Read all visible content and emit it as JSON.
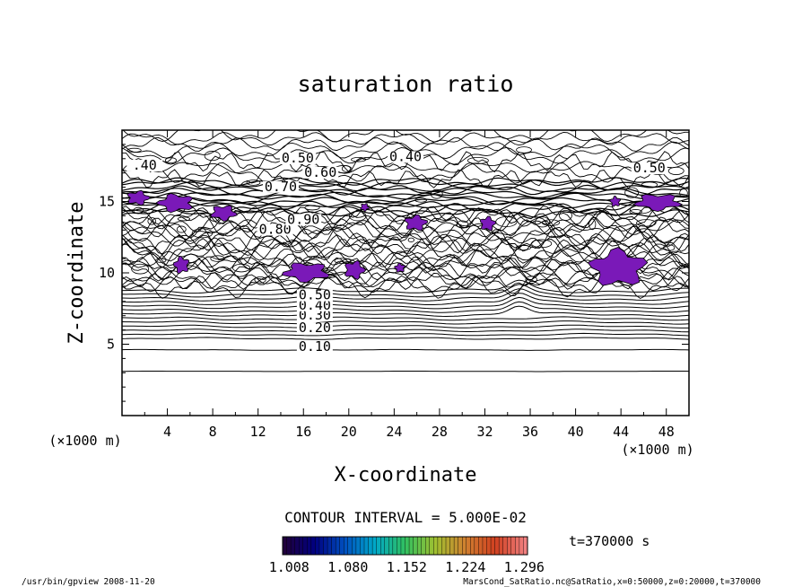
{
  "chart_data": {
    "type": "contour",
    "title": "saturation ratio",
    "xlabel": "X-coordinate",
    "ylabel": "Z-coordinate",
    "x_unit": "(×1000 m)",
    "y_unit": "(×1000 m)",
    "xlim": [
      0,
      50
    ],
    "ylim": [
      0,
      20
    ],
    "x_ticks": [
      4,
      8,
      12,
      16,
      20,
      24,
      28,
      32,
      36,
      40,
      44,
      48
    ],
    "y_ticks": [
      5,
      10,
      15
    ],
    "contour_interval_text": "CONTOUR INTERVAL = 5.000E-02",
    "time_text": "t=370000  s",
    "colorbar": {
      "labels": [
        "1.008",
        "1.080",
        "1.152",
        "1.224",
        "1.296"
      ],
      "range": [
        1.0,
        1.3
      ],
      "colors": [
        "#20003c",
        "#000080",
        "#0050c0",
        "#00a8c8",
        "#30c060",
        "#a0c030",
        "#d08030",
        "#d04020",
        "#f08080"
      ]
    },
    "contour_labels": [
      {
        "text": "0.10",
        "x": 17.0,
        "z": 4.6
      },
      {
        "text": "0.20",
        "x": 17.0,
        "z": 5.9
      },
      {
        "text": "0.30",
        "x": 17.0,
        "z": 6.8
      },
      {
        "text": "0.40",
        "x": 17.0,
        "z": 7.5
      },
      {
        "text": "0.50",
        "x": 17.0,
        "z": 8.2
      },
      {
        "text": "0.40",
        "x": 25.0,
        "z": 17.9
      },
      {
        "text": "0.50",
        "x": 15.5,
        "z": 17.8
      },
      {
        "text": "0.60",
        "x": 17.5,
        "z": 16.8
      },
      {
        "text": "0.70",
        "x": 14.0,
        "z": 15.8
      },
      {
        "text": "0.80",
        "x": 13.5,
        "z": 12.8
      },
      {
        "text": "0.90",
        "x": 16.0,
        "z": 13.5
      },
      {
        "text": "0.50",
        "x": 46.5,
        "z": 17.1
      },
      {
        "text": ".40",
        "x": 2.0,
        "z": 17.3
      }
    ],
    "supersaturated_regions_color": "#7a19b8",
    "supersaturated_regions": [
      {
        "x": [
          0.3,
          2.5
        ],
        "z": [
          14.7,
          15.8
        ]
      },
      {
        "x": [
          3.0,
          6.5
        ],
        "z": [
          14.2,
          15.6
        ]
      },
      {
        "x": [
          7.7,
          10.2
        ],
        "z": [
          13.6,
          14.8
        ]
      },
      {
        "x": [
          21.0,
          21.8
        ],
        "z": [
          14.3,
          14.9
        ]
      },
      {
        "x": [
          24.8,
          27.0
        ],
        "z": [
          12.9,
          14.1
        ]
      },
      {
        "x": [
          31.5,
          33.0
        ],
        "z": [
          12.9,
          14.0
        ]
      },
      {
        "x": [
          43.0,
          44.0
        ],
        "z": [
          14.6,
          15.4
        ]
      },
      {
        "x": [
          45.0,
          49.5
        ],
        "z": [
          14.3,
          15.6
        ]
      },
      {
        "x": [
          4.5,
          6.0
        ],
        "z": [
          9.9,
          11.2
        ]
      },
      {
        "x": [
          14.0,
          18.5
        ],
        "z": [
          9.3,
          10.8
        ]
      },
      {
        "x": [
          19.5,
          21.5
        ],
        "z": [
          9.5,
          10.9
        ]
      },
      {
        "x": [
          24.0,
          25.0
        ],
        "z": [
          10.0,
          10.7
        ]
      },
      {
        "x": [
          41.0,
          46.5
        ],
        "z": [
          8.9,
          11.8
        ]
      }
    ]
  },
  "footer": {
    "left": "/usr/bin/gpview  2008-11-20",
    "right": "MarsCond_SatRatio.nc@SatRatio,x=0:50000,z=0:20000,t=370000"
  }
}
